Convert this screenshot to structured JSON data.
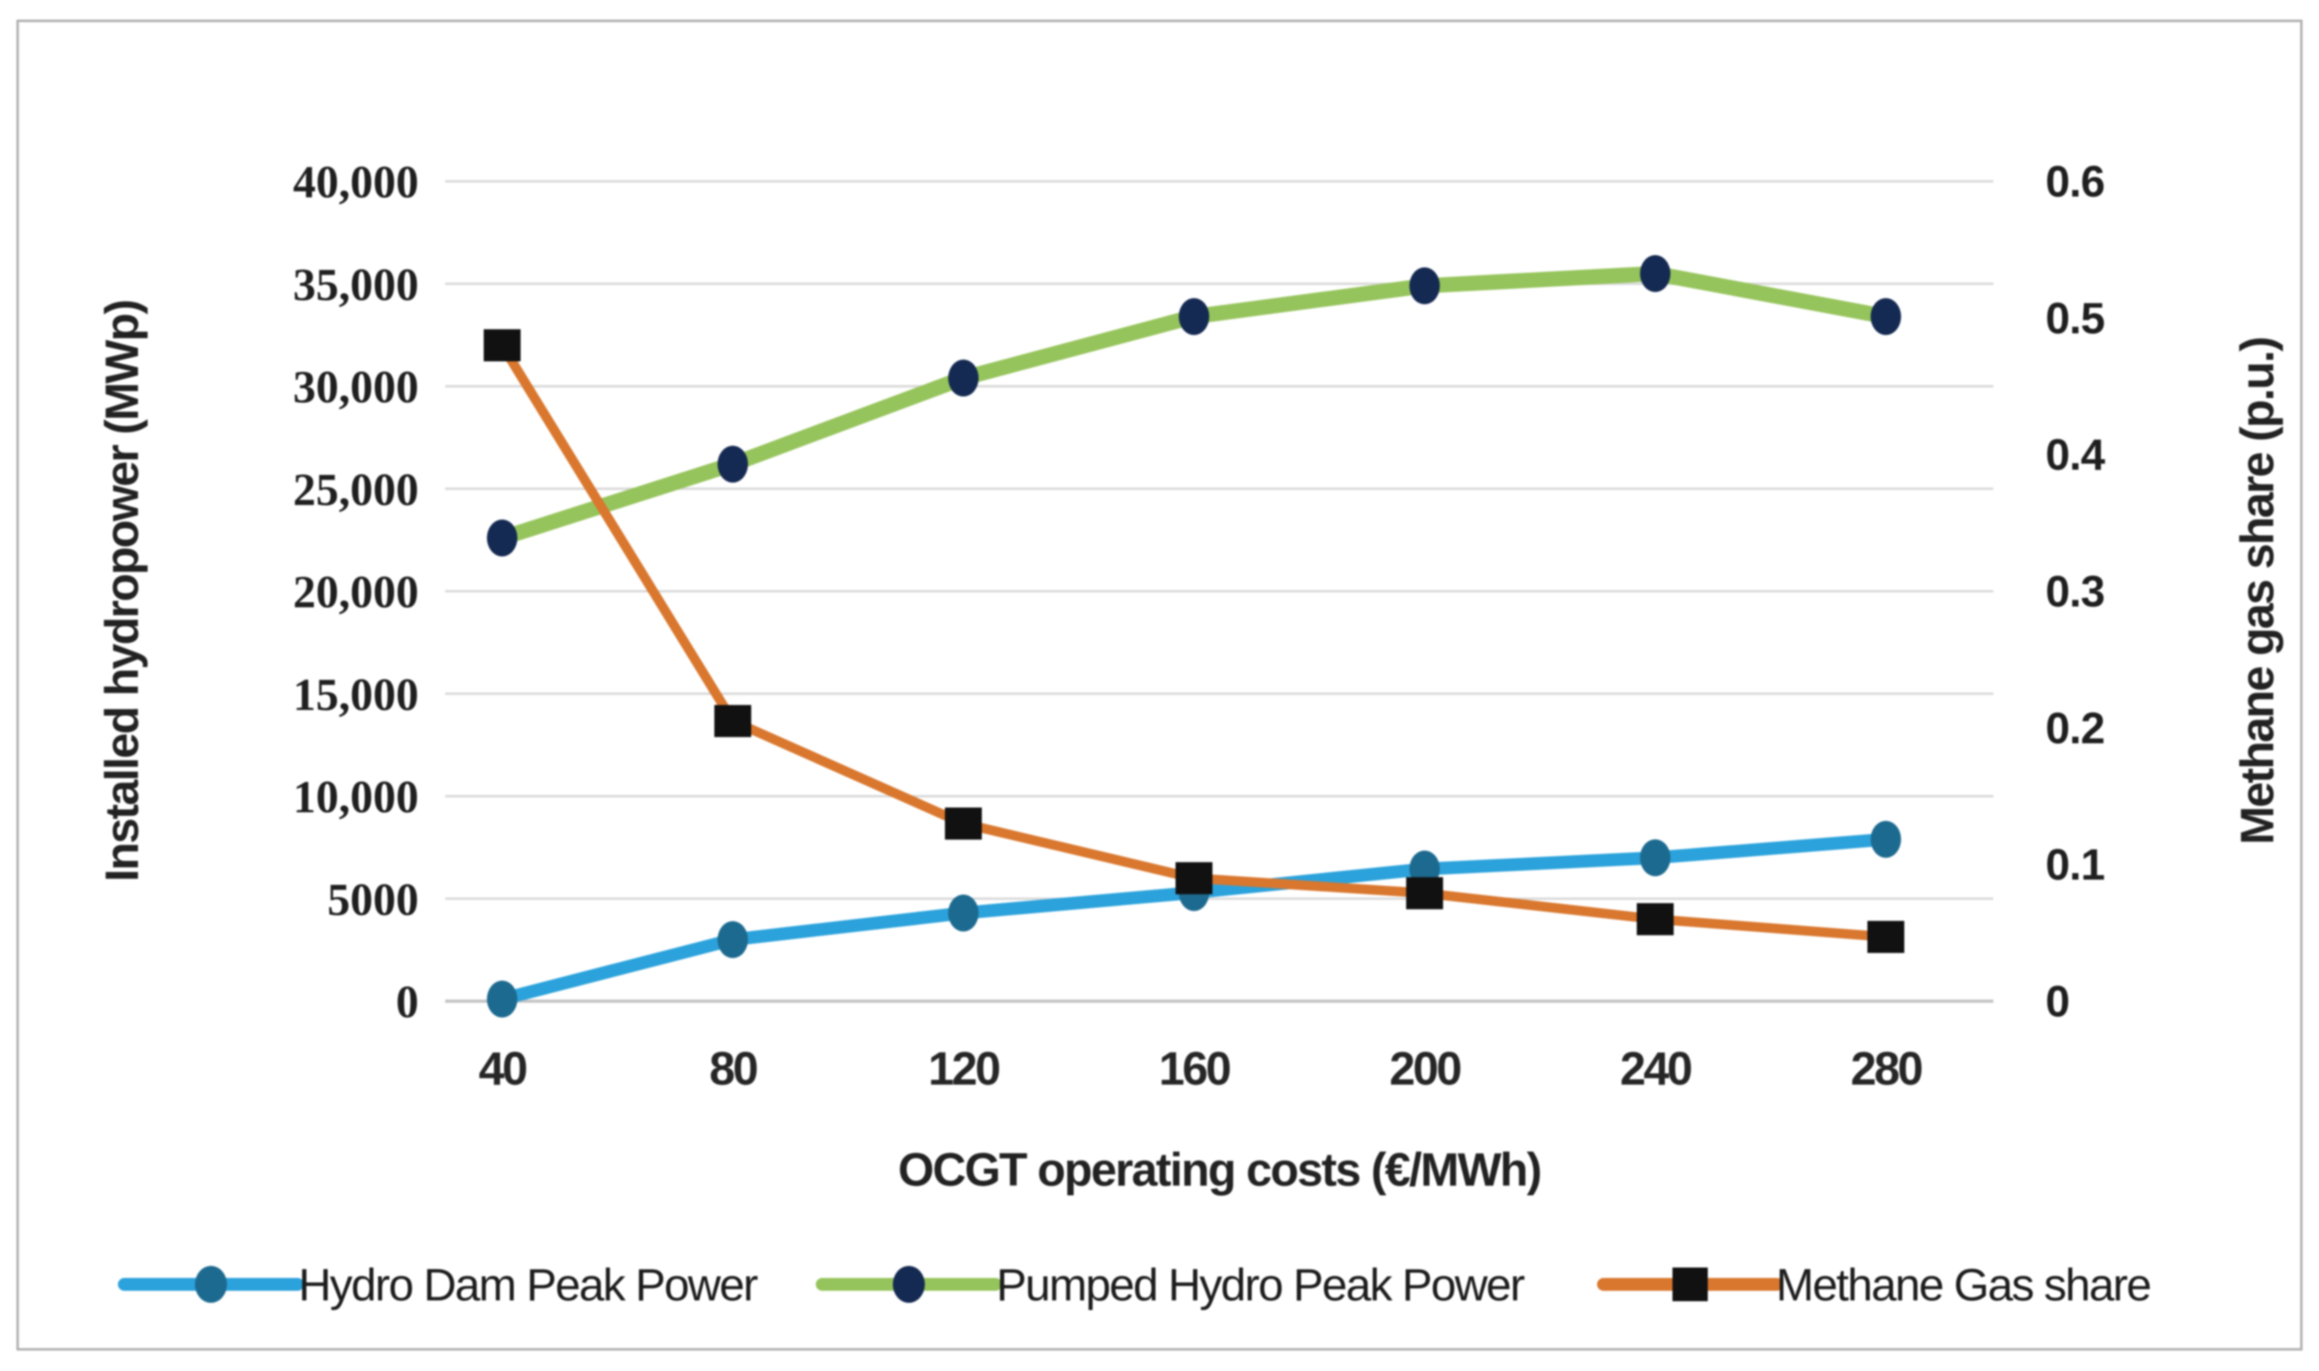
{
  "figure": {
    "background": "#FFFFFF",
    "border_color": "#AFAFAF"
  },
  "chart_data": {
    "type": "line",
    "title": "",
    "x": [
      40,
      80,
      120,
      160,
      200,
      240,
      280
    ],
    "x_tick_labels": [
      "40",
      "80",
      "120",
      "160",
      "200",
      "240",
      "280"
    ],
    "xlabel": "OCGT operating costs (€/MWh)",
    "grid": "horizontal",
    "legend_position": "bottom",
    "left_axis": {
      "label": "Installed hydropower (MWp)",
      "min": 0,
      "max": 40000,
      "tick_values": [
        0,
        5000,
        10000,
        15000,
        20000,
        25000,
        30000,
        35000,
        40000
      ],
      "tick_labels": [
        "0",
        "5000",
        "10,000",
        "15,000",
        "20,000",
        "25,000",
        "30,000",
        "35,000",
        "40,000"
      ]
    },
    "right_axis": {
      "label": "Methane gas share (p.u.)",
      "min": 0,
      "max": 0.6,
      "tick_values": [
        0,
        0.1,
        0.2,
        0.3,
        0.4,
        0.5,
        0.6
      ],
      "tick_labels": [
        "0",
        "0.1",
        "0.2",
        "0.3",
        "0.4",
        "0.5",
        "0.6"
      ]
    },
    "series": [
      {
        "name": "Hydro Dam Peak Power",
        "axis": "left",
        "values": [
          100,
          3000,
          4300,
          5300,
          6450,
          7000,
          7900
        ],
        "line_color": "#2BA2DB",
        "marker": "circle",
        "marker_color": "#1D6A90"
      },
      {
        "name": "Pumped Hydro Peak Power",
        "axis": "left",
        "values": [
          22600,
          26200,
          30400,
          33400,
          34900,
          35500,
          33400
        ],
        "line_color": "#96C45C",
        "marker": "circle",
        "marker_color": "#152A52"
      },
      {
        "name": "Methane Gas share",
        "axis": "right",
        "values": [
          0.48,
          0.205,
          0.13,
          0.09,
          0.079,
          0.06,
          0.047
        ],
        "line_color": "#D9772E",
        "marker": "square",
        "marker_color": "#111111"
      }
    ]
  }
}
